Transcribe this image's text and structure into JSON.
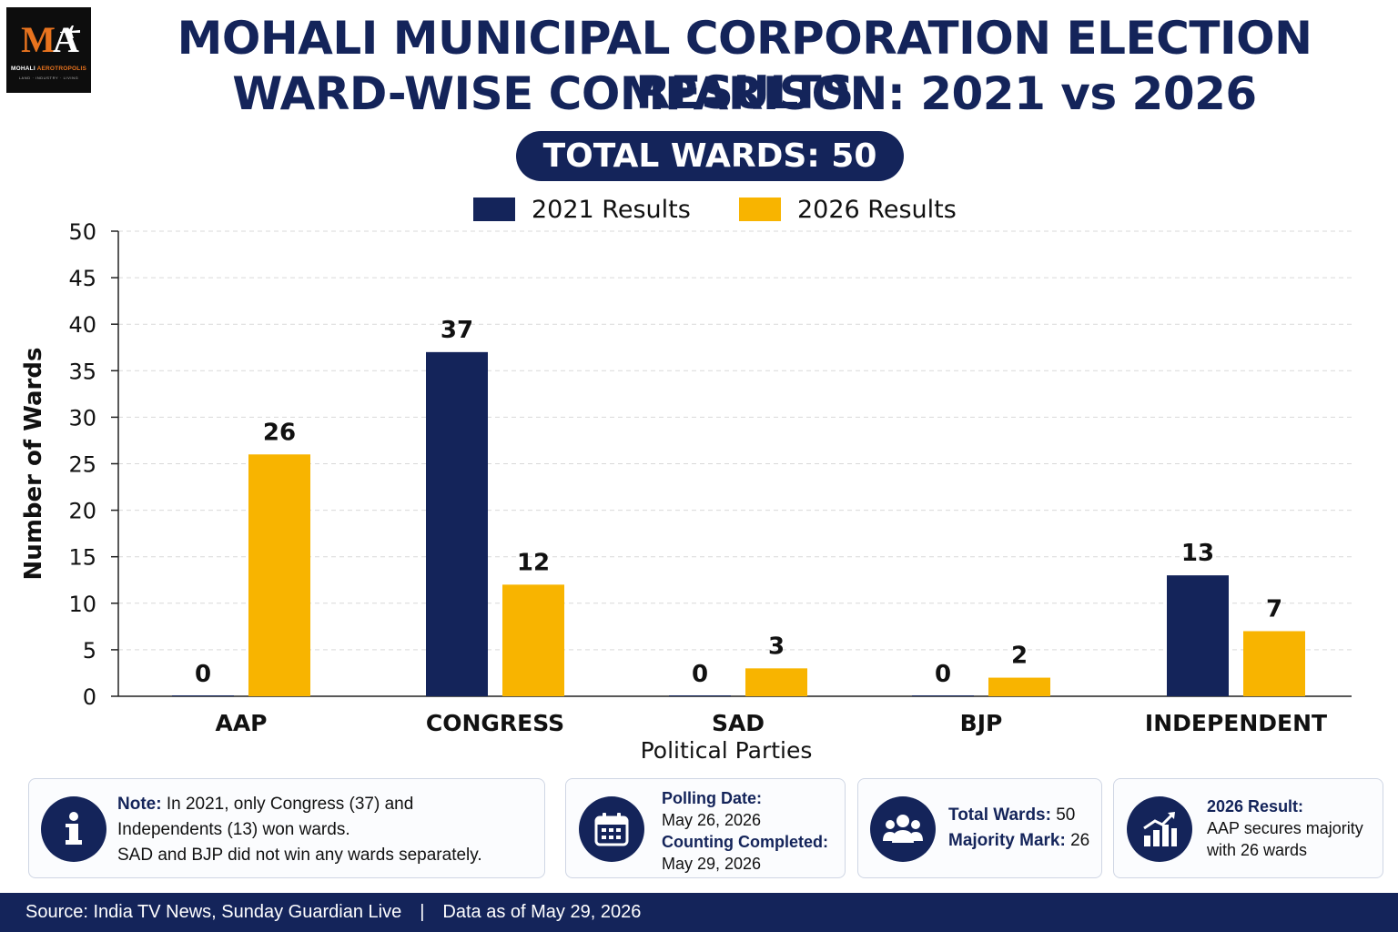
{
  "logo": {
    "mark_m": "M",
    "mark_a": "A",
    "name_1": "MOHALI",
    "name_2": "AEROTROPOLIS",
    "tagline": "LAND · INDUSTRY · LIVING"
  },
  "title_line1": "MOHALI MUNICIPAL CORPORATION ELECTION RESULTS",
  "title_line2": "WARD-WISE COMPARISON: 2021 vs 2026",
  "total_wards_badge": "TOTAL WARDS: 50",
  "colors": {
    "navy": "#14245a",
    "gold": "#f8b400",
    "grid": "#d9d9d9"
  },
  "chart_data": {
    "type": "bar",
    "title": "",
    "xlabel": "Political Parties",
    "ylabel": "Number of Wards",
    "ylim": [
      0,
      50
    ],
    "yticks": [
      0,
      5,
      10,
      15,
      20,
      25,
      30,
      35,
      40,
      45,
      50
    ],
    "grid": true,
    "legend_position": "top-center",
    "categories": [
      "AAP",
      "CONGRESS",
      "SAD",
      "BJP",
      "INDEPENDENT"
    ],
    "series": [
      {
        "name": "2021 Results",
        "color": "#14245a",
        "values": [
          0,
          37,
          0,
          0,
          13
        ]
      },
      {
        "name": "2026 Results",
        "color": "#f8b400",
        "values": [
          26,
          12,
          3,
          2,
          7
        ]
      }
    ]
  },
  "cards": {
    "note": {
      "icon": "info-icon",
      "label": "Note:",
      "line1": " In 2021, only Congress (37) and",
      "line2": "Independents (13) won wards.",
      "line3": "SAD and BJP did not win any wards separately."
    },
    "dates": {
      "icon": "calendar-icon",
      "polling_label": "Polling Date:",
      "polling_value": "May 26, 2026",
      "counting_label": "Counting Completed:",
      "counting_value": "May 29, 2026"
    },
    "wards": {
      "icon": "people-icon",
      "total_label": "Total Wards:",
      "total_value": " 50",
      "majority_label": "Majority Mark:",
      "majority_value": " 26"
    },
    "result": {
      "icon": "growth-chart-icon",
      "label": "2026 Result:",
      "line1": "AAP secures majority",
      "line2": "with 26 wards"
    }
  },
  "footer": {
    "source": "Source: India TV News, Sunday Guardian Live",
    "separator": "|",
    "data_as_of": "Data as of May 29, 2026"
  }
}
